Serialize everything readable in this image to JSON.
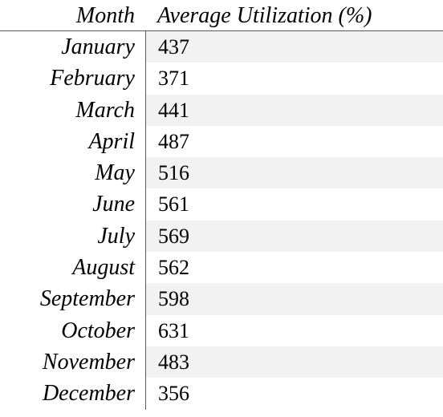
{
  "chart_data": {
    "type": "table",
    "columns": [
      "Month",
      "Average Utilization (%)"
    ],
    "rows": [
      {
        "month": "January",
        "value": "437"
      },
      {
        "month": "February",
        "value": "371"
      },
      {
        "month": "March",
        "value": "441"
      },
      {
        "month": "April",
        "value": "487"
      },
      {
        "month": "May",
        "value": "516"
      },
      {
        "month": "June",
        "value": "561"
      },
      {
        "month": "July",
        "value": "569"
      },
      {
        "month": "August",
        "value": "562"
      },
      {
        "month": "September",
        "value": "598"
      },
      {
        "month": "October",
        "value": "631"
      },
      {
        "month": "November",
        "value": "483"
      },
      {
        "month": "December",
        "value": "356"
      }
    ],
    "row_shading": "alternating",
    "shade_color": "#f2f2f2"
  }
}
